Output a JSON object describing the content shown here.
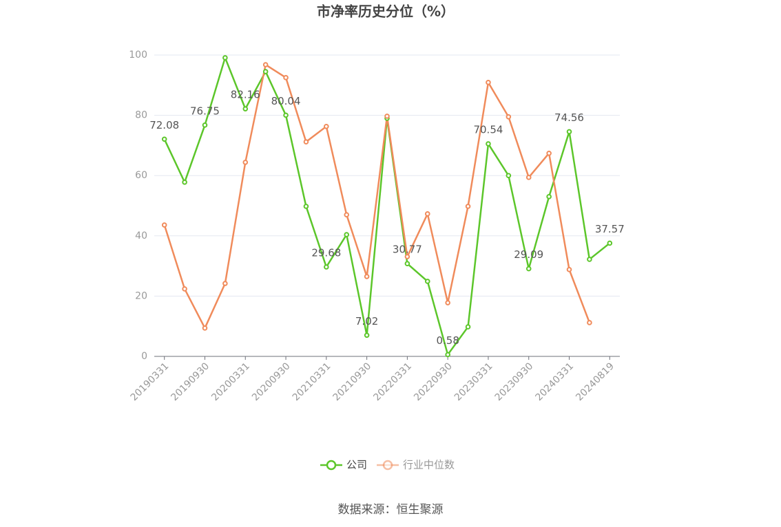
{
  "chart_data": {
    "type": "line",
    "title": "市净率历史分位（%）",
    "categories": [
      "20190331",
      null,
      "20190930",
      null,
      "20200331",
      null,
      "20200930",
      null,
      "20210331",
      null,
      "20210930",
      null,
      "20220331",
      null,
      "20220930",
      null,
      "20230331",
      null,
      "20230930",
      null,
      "20240331",
      null,
      "20240819"
    ],
    "series": [
      {
        "name": "公司",
        "color": "#5cc62a",
        "values": [
          72.08,
          57.8,
          76.75,
          99.1,
          82.16,
          94.5,
          80.04,
          49.8,
          29.68,
          40.4,
          7.02,
          79.0,
          30.77,
          24.9,
          0.58,
          9.8,
          70.54,
          60.0,
          29.09,
          53.0,
          74.56,
          32.2,
          37.57
        ],
        "value_labels": [
          "72.08",
          null,
          "76.75",
          null,
          "82.16",
          null,
          "80.04",
          null,
          "29.68",
          null,
          "7.02",
          null,
          "30.77",
          null,
          "0.58",
          null,
          "70.54",
          null,
          "29.09",
          null,
          "74.56",
          null,
          "37.57"
        ]
      },
      {
        "name": "行业中位数",
        "color": "#f08b5b",
        "values": [
          43.6,
          22.4,
          9.4,
          24.2,
          64.4,
          96.8,
          92.5,
          71.2,
          76.3,
          47.0,
          26.5,
          79.7,
          33.1,
          47.3,
          17.8,
          49.8,
          90.9,
          79.5,
          59.4,
          67.4,
          28.8,
          11.2,
          null
        ]
      }
    ],
    "ylim": [
      0,
      100
    ],
    "yticks": [
      0,
      20,
      40,
      60,
      80,
      100
    ],
    "grid": true,
    "legend": "bottom",
    "source": "数据来源：恒生聚源"
  }
}
